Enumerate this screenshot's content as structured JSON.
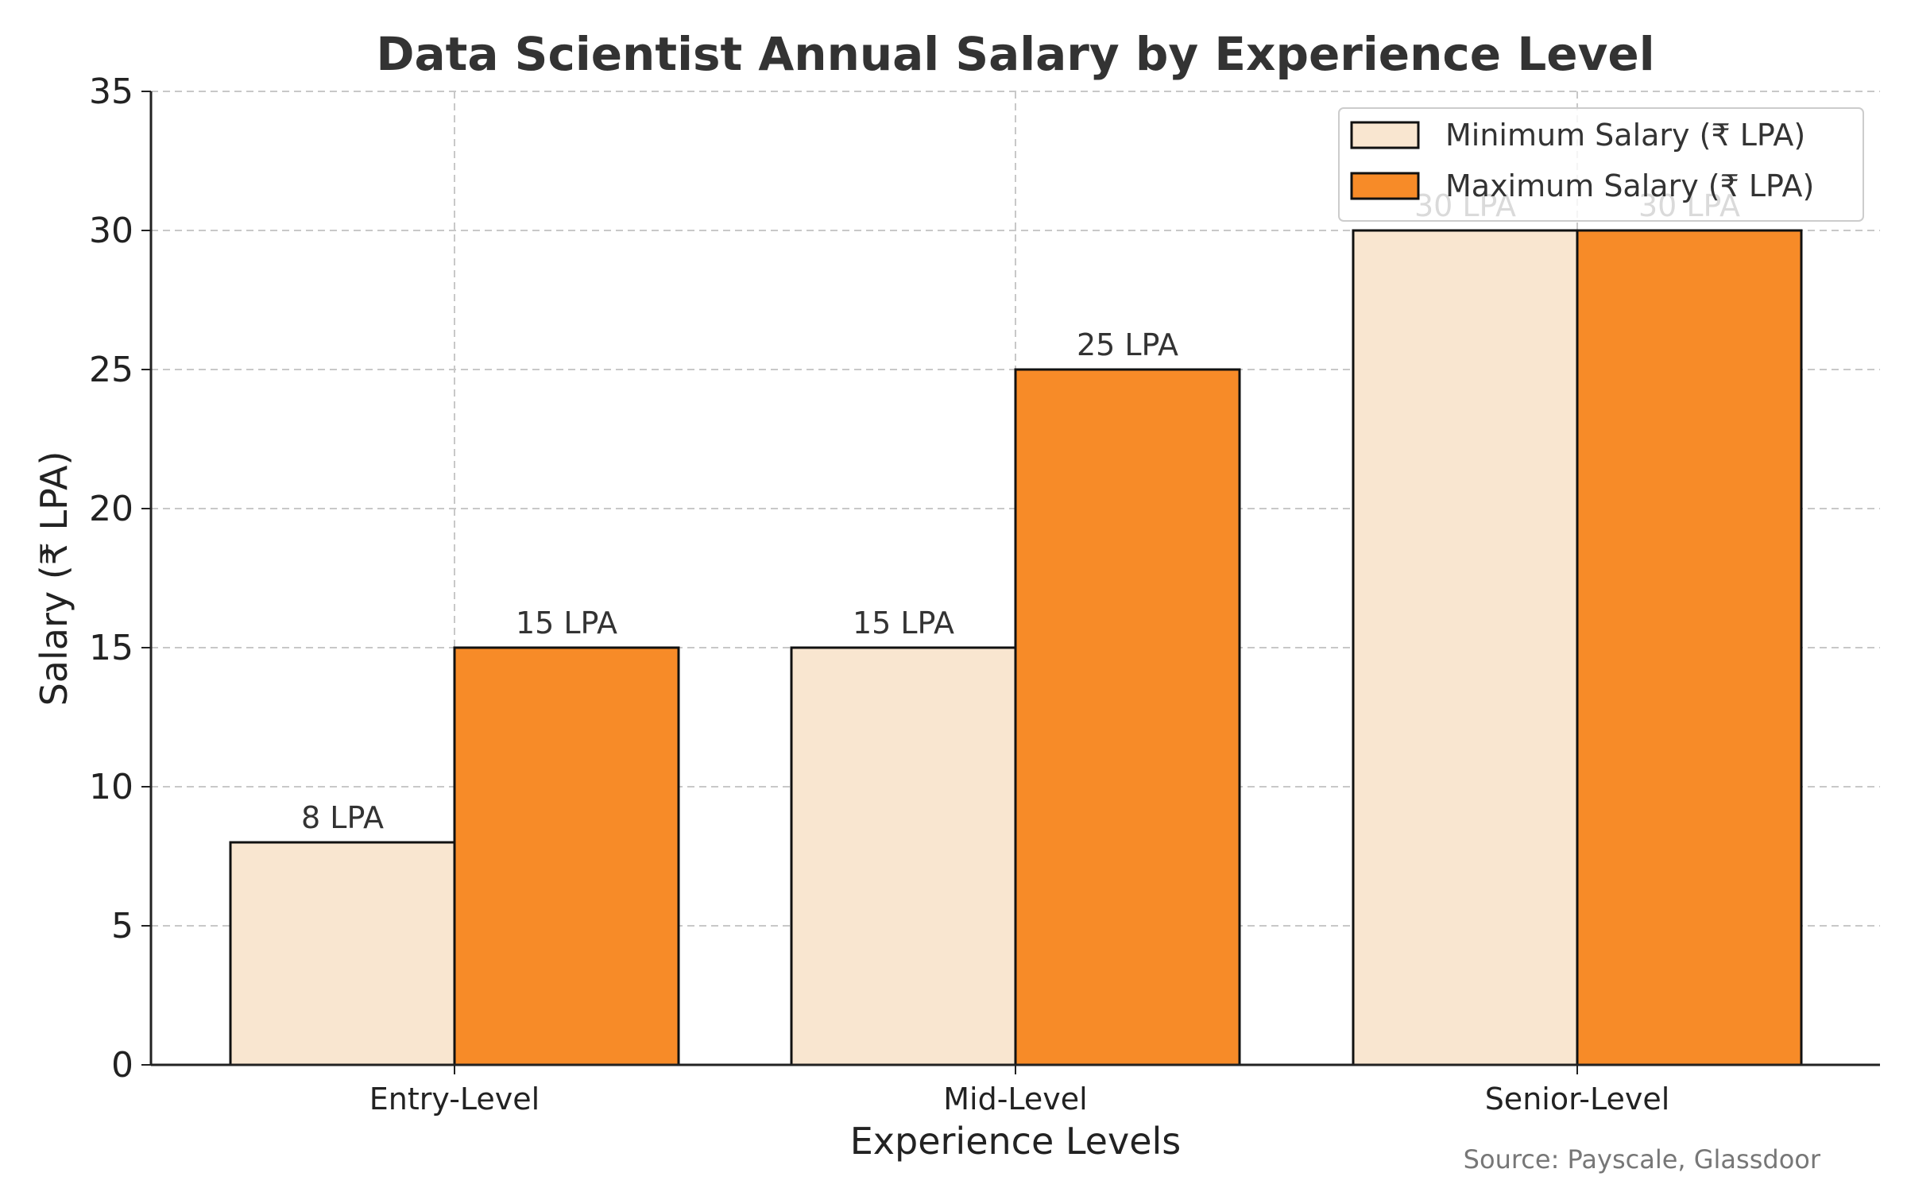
{
  "chart_data": {
    "type": "bar",
    "title": "Data Scientist Annual Salary by Experience Level",
    "xlabel": "Experience Levels",
    "ylabel": "Salary (₹ LPA)",
    "categories": [
      "Entry-Level",
      "Mid-Level",
      "Senior-Level"
    ],
    "series": [
      {
        "name": "Minimum Salary (₹ LPA)",
        "values": [
          8,
          15,
          30
        ],
        "labels": [
          "8 LPA",
          "15 LPA",
          "30 LPA"
        ],
        "color": "#f9e6d0"
      },
      {
        "name": "Maximum Salary (₹ LPA)",
        "values": [
          15,
          25,
          30
        ],
        "labels": [
          "15 LPA",
          "25 LPA",
          "30 LPA"
        ],
        "color": "#f78b28"
      }
    ],
    "ylim": [
      0,
      35
    ],
    "yticks": [
      0,
      5,
      10,
      15,
      20,
      25,
      30,
      35
    ],
    "grid": true,
    "legend_position": "top-right",
    "source_note": "Source: Payscale, Glassdoor"
  }
}
